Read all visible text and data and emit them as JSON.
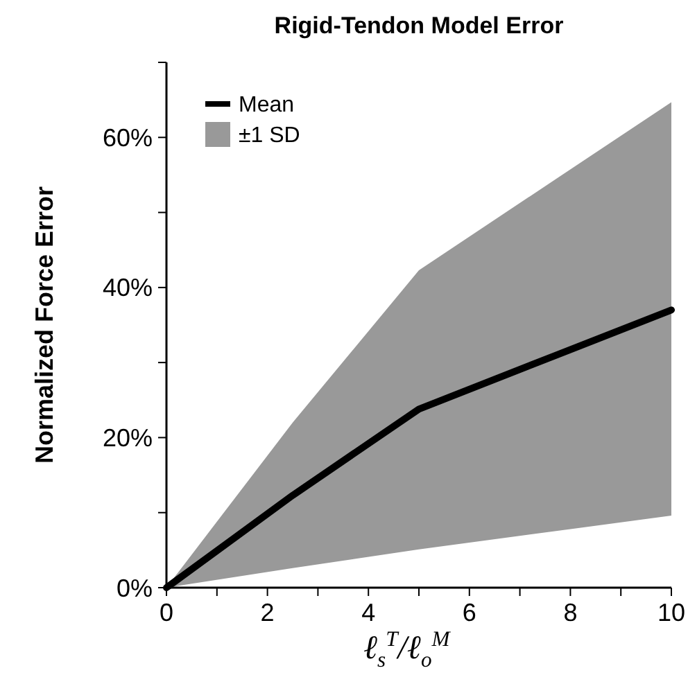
{
  "chart_data": {
    "type": "line",
    "title": "Rigid-Tendon Model Error",
    "xlabel": "ℓ$_{s}$$^{T}$/ℓ$_{o}$$^{M}$",
    "ylabel": "Normalized Force Error",
    "x": [
      0,
      2.5,
      5,
      10
    ],
    "series": [
      {
        "name": "Mean",
        "color": "#000000",
        "values": [
          0,
          12.3,
          23.8,
          37
        ],
        "lower": [
          0,
          2.6,
          5.1,
          9.6
        ],
        "upper": [
          0,
          22,
          42.3,
          64.7
        ]
      }
    ],
    "annotations": [
      "±1 SD"
    ],
    "xlim": [
      0,
      10
    ],
    "ylim": [
      0,
      70
    ],
    "xticks": [
      0,
      {
        "value": 1,
        "label": null
      },
      2,
      {
        "value": 3,
        "label": null
      },
      4,
      {
        "value": 5,
        "label": null
      },
      6,
      {
        "value": 7,
        "label": null
      },
      8,
      {
        "value": 9,
        "label": null
      },
      10
    ],
    "yticks": [
      {
        "value": 0,
        "label": "0%"
      },
      {
        "value": 10,
        "label": null
      },
      {
        "value": 20,
        "label": "20%"
      },
      {
        "value": 30,
        "label": null
      },
      {
        "value": 40,
        "label": "40%"
      },
      {
        "value": 50,
        "label": null
      },
      {
        "value": 60,
        "label": "60%"
      },
      {
        "value": 70,
        "label": null
      }
    ],
    "legend": "top left",
    "marker": "none",
    "line_style": "solid",
    "grid": false
  }
}
